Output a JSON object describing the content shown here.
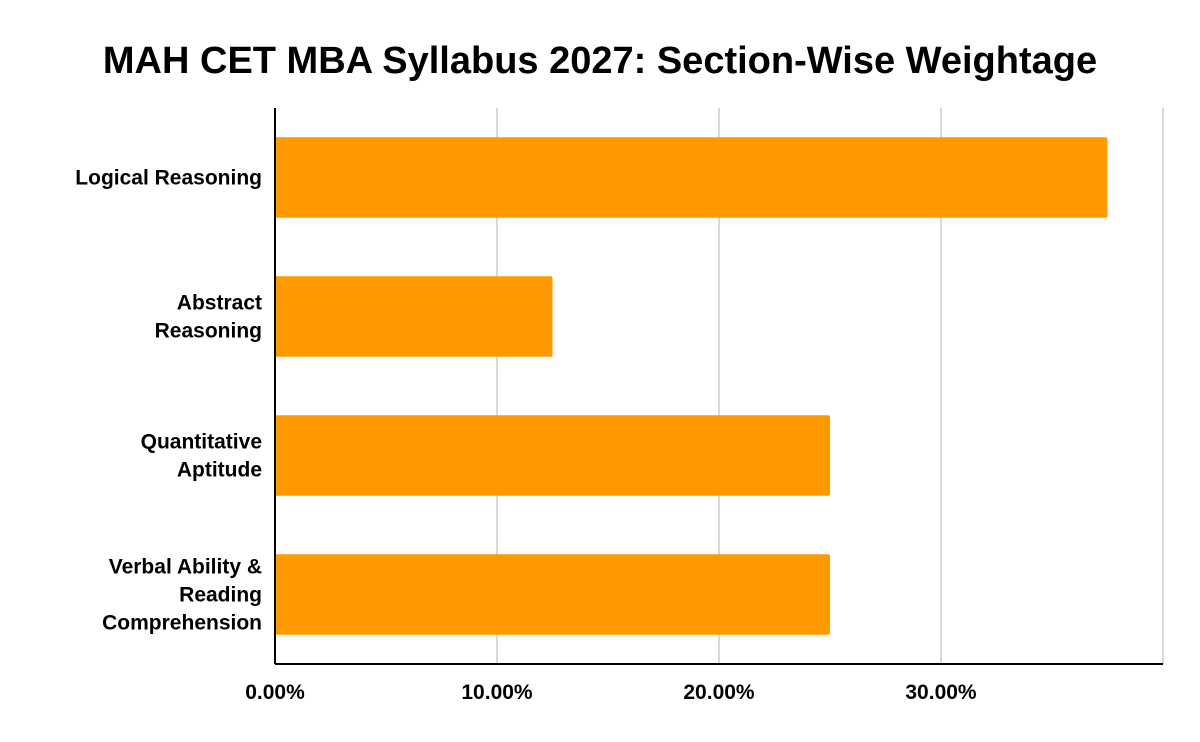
{
  "chart_data": {
    "type": "bar",
    "orientation": "horizontal",
    "title": "MAH CET MBA Syllabus 2027: Section-Wise Weightage",
    "categories": [
      [
        "Logical Reasoning"
      ],
      [
        "Abstract",
        "Reasoning"
      ],
      [
        "Quantitative",
        "Aptitude"
      ],
      [
        "Verbal Ability &",
        "Reading",
        "Comprehension"
      ]
    ],
    "values": [
      37.5,
      12.5,
      25,
      25
    ],
    "value_unit": "percent",
    "xlim": [
      0,
      40
    ],
    "xticks": [
      0,
      10,
      20,
      30
    ],
    "xtick_labels": [
      "0.00%",
      "10.00%",
      "20.00%",
      "30.00%"
    ],
    "xlabel": "",
    "ylabel": "",
    "grid": "vertical",
    "legend": "none",
    "bar_color": "#ff9900",
    "grid_color": "#cccccc",
    "axis_color": "#000000"
  }
}
